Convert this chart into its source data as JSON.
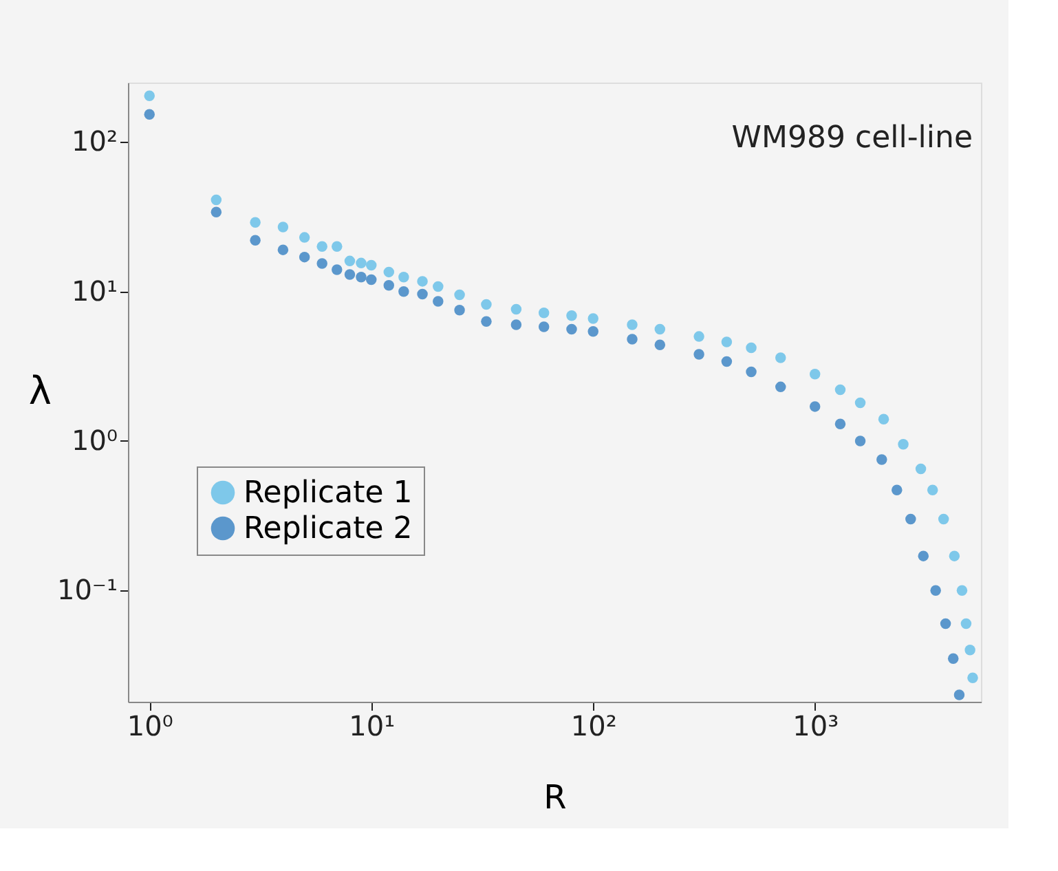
{
  "chart_data": {
    "type": "scatter",
    "xlabel": "R",
    "ylabel": "λ",
    "annotations": [
      "WM989 cell-line"
    ],
    "log": "xy",
    "xlim": [
      0.8,
      5600
    ],
    "ylim": [
      0.018,
      250
    ],
    "xticks": [
      {
        "value": 1,
        "label": "10⁰"
      },
      {
        "value": 10,
        "label": "10¹"
      },
      {
        "value": 100,
        "label": "10²"
      },
      {
        "value": 1000,
        "label": "10³"
      }
    ],
    "yticks": [
      {
        "value": 0.1,
        "label": "10⁻¹"
      },
      {
        "value": 1,
        "label": "10⁰"
      },
      {
        "value": 10,
        "label": "10¹"
      },
      {
        "value": 100,
        "label": "10²"
      }
    ],
    "grid": false,
    "legend": "left",
    "marker": "circle",
    "series": [
      {
        "name": "Replicate 1",
        "color": "#7ec8ea",
        "x": [
          1,
          2,
          3,
          4,
          5,
          6,
          7,
          8,
          9,
          10,
          12,
          14,
          17,
          20,
          25,
          33,
          45,
          60,
          80,
          100,
          150,
          200,
          300,
          400,
          516,
          700,
          1000,
          1300,
          1600,
          2040,
          2500,
          3000,
          3390,
          3800,
          4250,
          4600,
          4800,
          5000,
          5140
        ],
        "values": [
          204,
          41,
          29,
          27,
          23,
          20,
          20,
          16,
          15.5,
          15,
          13.5,
          12.5,
          11.7,
          10.8,
          9.5,
          8.2,
          7.6,
          7.2,
          6.9,
          6.6,
          6.0,
          5.6,
          5.0,
          4.6,
          4.2,
          3.6,
          2.8,
          2.2,
          1.8,
          1.4,
          0.95,
          0.65,
          0.47,
          0.3,
          0.17,
          0.1,
          0.06,
          0.04,
          0.026
        ]
      },
      {
        "name": "Replicate 2",
        "color": "#5b97cc",
        "x": [
          1,
          2,
          3,
          4,
          5,
          6,
          7,
          8,
          9,
          10,
          12,
          14,
          17,
          20,
          25,
          33,
          45,
          60,
          80,
          100,
          150,
          200,
          300,
          400,
          516,
          700,
          1000,
          1300,
          1600,
          2000,
          2340,
          2700,
          3080,
          3500,
          3880,
          4200,
          4470
        ],
        "values": [
          153,
          34,
          22,
          19,
          17,
          15.4,
          14,
          13,
          12.5,
          12,
          11,
          10,
          9.6,
          8.6,
          7.5,
          6.3,
          6.0,
          5.8,
          5.6,
          5.4,
          4.8,
          4.4,
          3.8,
          3.4,
          2.9,
          2.3,
          1.7,
          1.3,
          1.0,
          0.75,
          0.47,
          0.3,
          0.17,
          0.1,
          0.06,
          0.035,
          0.02
        ]
      }
    ]
  }
}
